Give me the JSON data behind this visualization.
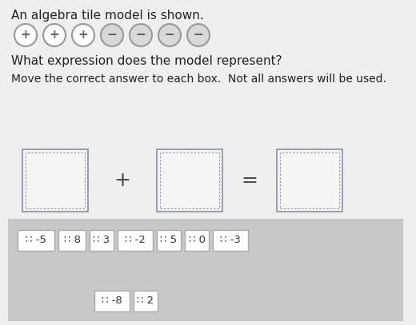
{
  "title1": "An algebra tile model is shown.",
  "circles": [
    {
      "sign": "+",
      "fill": "#ffffff",
      "text_color": "#666666",
      "border": "#999999"
    },
    {
      "sign": "+",
      "fill": "#ffffff",
      "text_color": "#666666",
      "border": "#999999"
    },
    {
      "sign": "+",
      "fill": "#ffffff",
      "text_color": "#666666",
      "border": "#999999"
    },
    {
      "sign": "−",
      "fill": "#d8d8d8",
      "text_color": "#555555",
      "border": "#999999"
    },
    {
      "sign": "−",
      "fill": "#d8d8d8",
      "text_color": "#555555",
      "border": "#999999"
    },
    {
      "sign": "−",
      "fill": "#d8d8d8",
      "text_color": "#555555",
      "border": "#999999"
    },
    {
      "sign": "−",
      "fill": "#d8d8d8",
      "text_color": "#555555",
      "border": "#999999"
    }
  ],
  "question": "What expression does the model represent?",
  "instruction": "Move the correct answer to each box.  Not all answers will be used.",
  "chip_row1": [
    "∷ -5",
    "∷ 8",
    "∷ 3",
    "∷ -2",
    "∷ 5",
    "∷ 0",
    "∷ -3"
  ],
  "chip_row2": [
    "∷ -8",
    "∷ 2"
  ],
  "bg_color": "#f0efef",
  "chip_bg": "#ffffff",
  "chip_border": "#aaaaaa",
  "panel_bg": "#c8c8c8",
  "box_fill": "#f5f5f5",
  "box_border_outer": "#8a8fa0",
  "box_border_inner": "#8a8fa0"
}
